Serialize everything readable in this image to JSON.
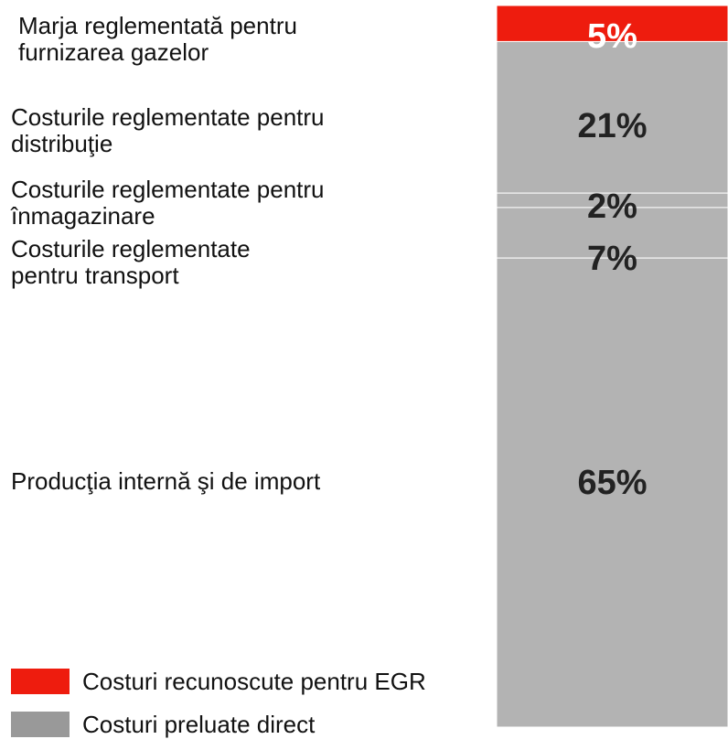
{
  "chart_data": {
    "type": "stacked-bar",
    "categories": [
      "Marja reglementată pentru furnizarea gazelor",
      "Costurile reglementate pentru distribuţie",
      "Costurile reglementate pentru înmagazinare",
      "Costurile reglementate pentru transport",
      "Producţia internă şi de import"
    ],
    "values": [
      5,
      21,
      2,
      7,
      65
    ],
    "value_labels": [
      "5%",
      "21%",
      "2%",
      "7%",
      "65%"
    ],
    "colors": [
      "#ee1c0e",
      "#b3b3b3",
      "#b3b3b3",
      "#b3b3b3",
      "#b3b3b3"
    ],
    "legend": [
      {
        "name": "Costuri recunoscute pentru EGR",
        "color": "#ee1c0e"
      },
      {
        "name": "Costuri preluate direct",
        "color": "#999999"
      }
    ]
  }
}
